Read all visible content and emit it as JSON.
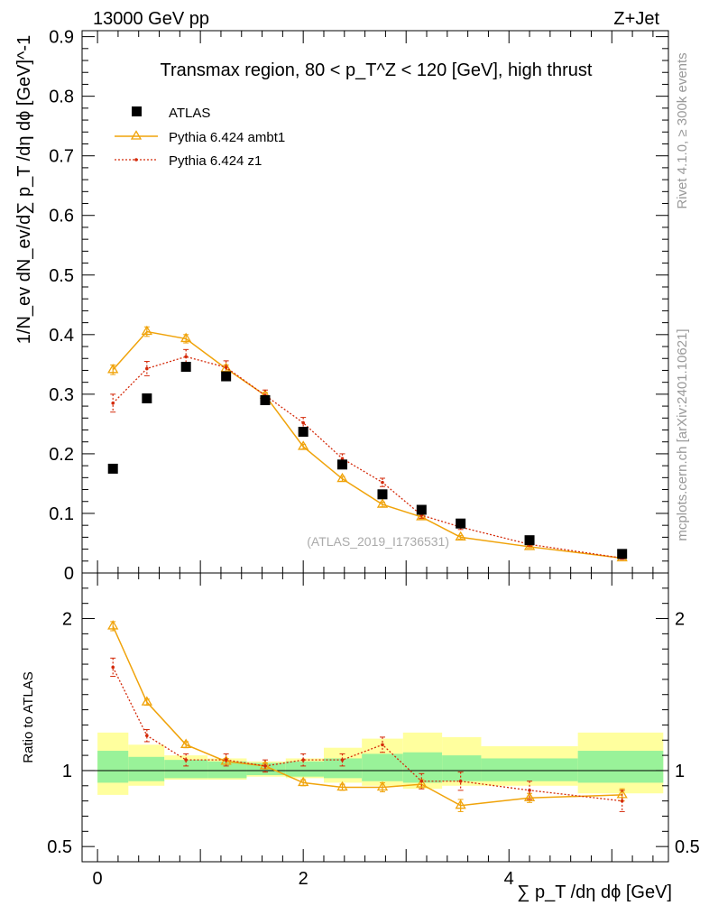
{
  "header": {
    "energy_label": "13000 GeV pp",
    "process_label": "Z+Jet"
  },
  "side": {
    "rivet_label": "Rivet 4.1.0, ≥ 300k events",
    "mcplots_label": "mcplots.cern.ch [arXiv:2401.10621]"
  },
  "chart_data": {
    "type": "scatter",
    "title": "Transmax region, 80 < p_T^Z < 120 [GeV], high thrust",
    "analysis_id": "(ATLAS_2019_I1736531)",
    "xlabel": "∑ p_T /dη dϕ [GeV]",
    "ylabel_main": "1/N_ev dN_ev/d∑ p_T /dη dϕ [GeV]^-1",
    "ylabel_ratio": "Ratio to ATLAS",
    "xlim": [
      -0.15,
      5.55
    ],
    "ylim_main": [
      0,
      0.91
    ],
    "ylim_ratio": [
      0.4,
      2.3
    ],
    "x_ticks": [
      "0",
      "2",
      "4"
    ],
    "y_ticks_main": [
      "0",
      "0.1",
      "0.2",
      "0.3",
      "0.4",
      "0.5",
      "0.6",
      "0.7",
      "0.8",
      "0.9"
    ],
    "y_ticks_ratio": [
      "0.5",
      "1",
      "2"
    ],
    "legend": [
      {
        "name": "ATLAS",
        "color": "#000000"
      },
      {
        "name": "Pythia 6.424 ambt1",
        "color": "#f0a30a"
      },
      {
        "name": "Pythia 6.424 z1",
        "color": "#d42a0a"
      }
    ],
    "series": [
      {
        "name": "ATLAS",
        "x": [
          0.15,
          0.48,
          0.86,
          1.25,
          1.63,
          2.0,
          2.38,
          2.77,
          3.15,
          3.53,
          4.2,
          5.1
        ],
        "values": [
          0.175,
          0.293,
          0.346,
          0.33,
          0.29,
          0.237,
          0.182,
          0.132,
          0.106,
          0.083,
          0.055,
          0.032
        ]
      },
      {
        "name": "Pythia 6.424 ambt1",
        "x": [
          0.15,
          0.48,
          0.86,
          1.25,
          1.63,
          2.0,
          2.38,
          2.77,
          3.15,
          3.53,
          4.2,
          5.1
        ],
        "values": [
          0.341,
          0.405,
          0.393,
          0.343,
          0.298,
          0.212,
          0.158,
          0.115,
          0.094,
          0.06,
          0.044,
          0.025
        ],
        "errors": [
          0.008,
          0.008,
          0.007,
          0.006,
          0.005,
          0.004,
          0.004,
          0.004,
          0.003,
          0.003,
          0.002,
          0.002
        ]
      },
      {
        "name": "Pythia 6.424 z1",
        "x": [
          0.15,
          0.48,
          0.86,
          1.25,
          1.63,
          2.0,
          2.38,
          2.77,
          3.15,
          3.53,
          4.2,
          5.1
        ],
        "values": [
          0.285,
          0.343,
          0.363,
          0.345,
          0.298,
          0.252,
          0.192,
          0.152,
          0.097,
          0.077,
          0.048,
          0.025
        ],
        "errors": [
          0.015,
          0.012,
          0.012,
          0.011,
          0.009,
          0.009,
          0.008,
          0.007,
          0.005,
          0.004,
          0.003,
          0.002
        ]
      }
    ],
    "ratio_series": [
      {
        "name": "Pythia 6.424 ambt1",
        "x": [
          0.15,
          0.48,
          0.86,
          1.25,
          1.63,
          2.0,
          2.38,
          2.77,
          3.15,
          3.53,
          4.2,
          5.1
        ],
        "values": [
          1.95,
          1.45,
          1.17,
          1.06,
          1.03,
          0.92,
          0.89,
          0.89,
          0.91,
          0.77,
          0.82,
          0.84
        ],
        "errors": [
          0.03,
          0.02,
          0.02,
          0.02,
          0.02,
          0.02,
          0.02,
          0.03,
          0.03,
          0.04,
          0.03,
          0.04
        ]
      },
      {
        "name": "Pythia 6.424 z1",
        "x": [
          0.15,
          0.48,
          0.86,
          1.25,
          1.63,
          2.0,
          2.38,
          2.77,
          3.15,
          3.53,
          4.2,
          5.1
        ],
        "values": [
          1.68,
          1.23,
          1.07,
          1.07,
          1.03,
          1.07,
          1.07,
          1.17,
          0.93,
          0.93,
          0.87,
          0.8
        ],
        "errors": [
          0.06,
          0.04,
          0.04,
          0.04,
          0.04,
          0.04,
          0.04,
          0.05,
          0.05,
          0.06,
          0.06,
          0.07
        ]
      }
    ],
    "ratio_bands": {
      "edges": [
        0.0,
        0.3,
        0.65,
        1.07,
        1.45,
        1.83,
        2.2,
        2.57,
        2.97,
        3.35,
        3.73,
        4.67,
        5.5
      ],
      "inner_lo": [
        0.92,
        0.93,
        0.95,
        0.95,
        0.97,
        0.96,
        0.95,
        0.93,
        0.92,
        0.93,
        0.93,
        0.92
      ],
      "inner_hi": [
        1.13,
        1.09,
        1.07,
        1.06,
        1.05,
        1.06,
        1.08,
        1.11,
        1.12,
        1.1,
        1.08,
        1.13
      ],
      "outer_lo": [
        0.84,
        0.9,
        0.94,
        0.94,
        0.96,
        0.95,
        0.92,
        0.9,
        0.88,
        0.9,
        0.9,
        0.85
      ],
      "outer_hi": [
        1.25,
        1.17,
        1.1,
        1.08,
        1.06,
        1.08,
        1.15,
        1.21,
        1.25,
        1.22,
        1.16,
        1.25
      ],
      "inner_color": "#99f299",
      "outer_color": "#ffff9e"
    }
  }
}
